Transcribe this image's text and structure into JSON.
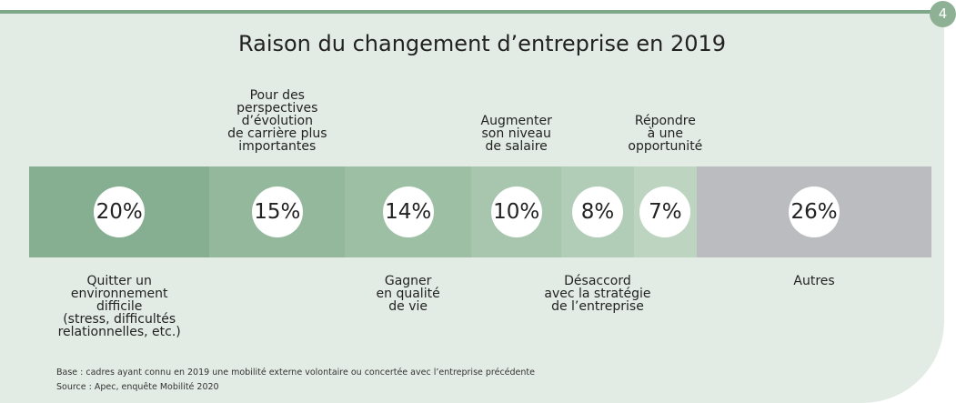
{
  "page_number": "4",
  "chart_data": {
    "type": "stacked-bar-100",
    "title": "Raison du changement d’entreprise en 2019",
    "categories": [
      "Quitter un\nenvironnement\ndifficile\n(stress, difficultés\nrelationnelles, etc.)",
      "Pour des\nperspectives\nd’évolution\nde carrière plus\nimportantes",
      "Gagner\nen qualité\nde vie",
      "Augmenter\nson niveau\nde salaire",
      "Désaccord\navec la stratégie\nde l’entreprise",
      "Répondre\nà une\nopportunité",
      "Autres"
    ],
    "values": [
      20,
      15,
      14,
      10,
      8,
      7,
      26
    ],
    "value_labels": [
      "20%",
      "15%",
      "14%",
      "10%",
      "8%",
      "7%",
      "26%"
    ],
    "colors": [
      "#86ae90",
      "#93b89b",
      "#9dbfa4",
      "#a7c6ad",
      "#b2cdb7",
      "#bcd4c0",
      "#bbbcc0"
    ],
    "xlim": [
      0,
      100
    ]
  },
  "notes": [
    "Base : cadres ayant connu en 2019 une mobilité externe volontaire ou concertée avec l’entreprise précédente",
    "Source : Apec, enquête Mobilité 2020"
  ]
}
